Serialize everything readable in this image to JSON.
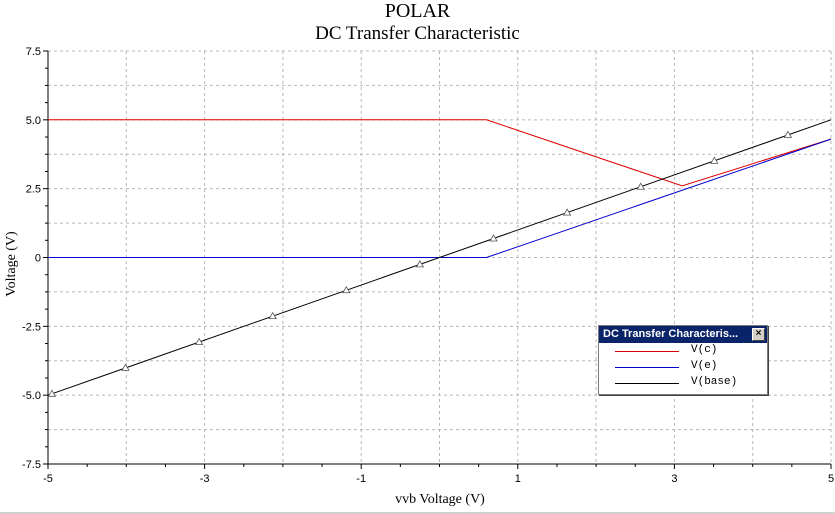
{
  "chart_data": {
    "type": "line",
    "title": "POLAR",
    "subtitle": "DC Transfer Characteristic",
    "xlabel": "vvb Voltage (V)",
    "ylabel": "Voltage (V)",
    "xlim": [
      -5,
      5
    ],
    "ylim": [
      -7.5,
      7.5
    ],
    "x_ticks": [
      -5,
      -3,
      -1,
      1,
      3,
      5
    ],
    "y_ticks": [
      7.5,
      5.0,
      2.5,
      0,
      -2.5,
      -5.0,
      -7.5
    ],
    "y_tick_labels": [
      "7.5",
      "5.0",
      "2.5",
      "0",
      "-2.5",
      "-5.0",
      "-7.5"
    ],
    "grid": true,
    "legend_position": "lower-right",
    "series": [
      {
        "name": "V(c)",
        "color": "#dd0000",
        "x": [
          -5,
          0.6,
          3.1,
          5
        ],
        "y": [
          5.0,
          5.0,
          2.6,
          4.3
        ]
      },
      {
        "name": "V(e)",
        "color": "#0000cc",
        "x": [
          -5,
          0.6,
          5
        ],
        "y": [
          0,
          0,
          4.3
        ]
      },
      {
        "name": "V(base)",
        "color": "#000000",
        "x": [
          -5,
          5
        ],
        "y": [
          -5.0,
          5.0
        ],
        "markers": "triangle"
      }
    ]
  },
  "legend": {
    "title": "DC Transfer Characteris...",
    "close_label": "×"
  }
}
